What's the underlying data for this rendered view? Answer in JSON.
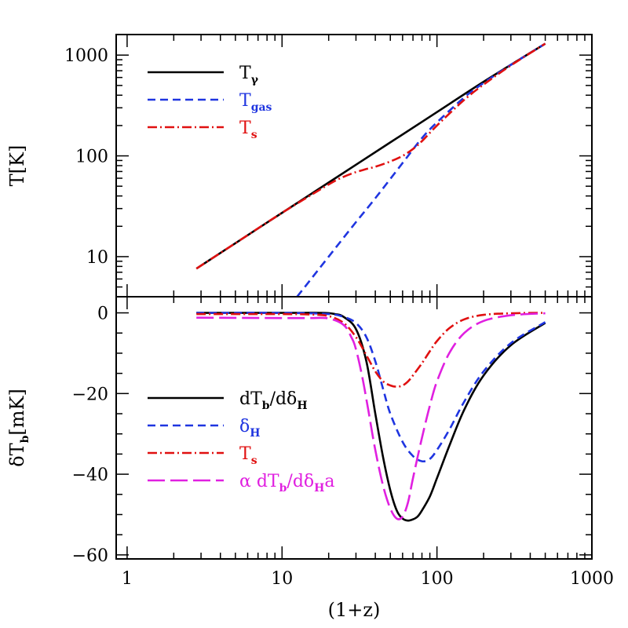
{
  "chart_data": [
    {
      "panel": "top",
      "type": "line",
      "xscale": "log",
      "yscale": "log",
      "xlim": [
        0.85,
        1000
      ],
      "ylim": [
        4,
        1600
      ],
      "ylabel": "T[K]",
      "yticks": [
        {
          "value": 10,
          "label": "10"
        },
        {
          "value": 100,
          "label": "100"
        },
        {
          "value": 1000,
          "label": "1000"
        }
      ],
      "legend": [
        {
          "main": "T",
          "sub": "γ",
          "color": "#000000"
        },
        {
          "main": "T",
          "sub": "gas",
          "color": "#1f35e0"
        },
        {
          "main": "T",
          "sub": "s",
          "color": "#e01010"
        }
      ],
      "series": [
        {
          "key": "t-gamma",
          "color": "#000000",
          "dash": "",
          "x": [
            2.8,
            5,
            10,
            20,
            50,
            100,
            200,
            500
          ],
          "y": [
            7.6,
            13.6,
            27.2,
            54.4,
            136,
            272,
            544,
            1300
          ]
        },
        {
          "key": "t-gas",
          "color": "#1f35e0",
          "dash": "10,6",
          "x": [
            12.5,
            15,
            20,
            30,
            40,
            60,
            80,
            100,
            150,
            200,
            300,
            500
          ],
          "y": [
            4,
            5.7,
            10,
            22,
            38,
            85,
            150,
            215,
            380,
            530,
            800,
            1300
          ]
        },
        {
          "key": "t-s",
          "color": "#e01010",
          "dash": "12,4,2,4",
          "x": [
            2.8,
            5,
            10,
            20,
            25,
            30,
            35,
            40,
            50,
            60,
            70,
            80,
            100,
            150,
            200,
            300,
            500
          ],
          "y": [
            7.6,
            13.6,
            27.2,
            52,
            62,
            69,
            74,
            78,
            88,
            100,
            117,
            140,
            200,
            360,
            510,
            790,
            1300
          ]
        }
      ]
    },
    {
      "panel": "bottom",
      "type": "line",
      "xscale": "log",
      "yscale": "linear",
      "xlim": [
        0.85,
        1000
      ],
      "ylim": [
        -61,
        4
      ],
      "xlabel": "(1+z)",
      "ylabel": "δT_b[mK]",
      "ylabel_parts": {
        "main": "δT",
        "sub": "b",
        "rest": "[mK]"
      },
      "xticks": [
        {
          "value": 1,
          "label": "1"
        },
        {
          "value": 10,
          "label": "10"
        },
        {
          "value": 100,
          "label": "100"
        },
        {
          "value": 1000,
          "label": "1000"
        }
      ],
      "yticks": [
        {
          "value": 0,
          "label": "0"
        },
        {
          "value": -20,
          "label": "−20"
        },
        {
          "value": -40,
          "label": "−40"
        },
        {
          "value": -60,
          "label": "−60"
        }
      ],
      "legend": [
        {
          "parts": [
            {
              "t": "dT"
            },
            {
              "t": "b",
              "sub": true
            },
            {
              "t": "/dδ"
            },
            {
              "t": "H",
              "sub": true
            }
          ],
          "color": "#000000"
        },
        {
          "parts": [
            {
              "t": "δ"
            },
            {
              "t": "H",
              "sub": true
            }
          ],
          "color": "#1f35e0"
        },
        {
          "parts": [
            {
              "t": "T"
            },
            {
              "t": "s",
              "sub": true
            }
          ],
          "color": "#e01010"
        },
        {
          "parts": [
            {
              "t": "α dT"
            },
            {
              "t": "b",
              "sub": true
            },
            {
              "t": "/dδ"
            },
            {
              "t": "H",
              "sub": true
            },
            {
              "t": "a"
            }
          ],
          "color": "#e020e0"
        }
      ],
      "series": [
        {
          "key": "dtb-ddh",
          "color": "#000000",
          "dash": "",
          "x": [
            2.8,
            10,
            18,
            22,
            25,
            30,
            35,
            40,
            45,
            50,
            55,
            60,
            65,
            70,
            75,
            80,
            90,
            100,
            120,
            150,
            200,
            300,
            500
          ],
          "y": [
            0,
            0,
            0,
            -0.3,
            -1,
            -4,
            -12,
            -25,
            -36,
            -44,
            -49,
            -51,
            -51.5,
            -51.2,
            -50.5,
            -49,
            -45.5,
            -41,
            -33,
            -24,
            -15.5,
            -8,
            -2.5
          ]
        },
        {
          "key": "delta-h",
          "color": "#1f35e0",
          "dash": "10,6",
          "x": [
            2.8,
            10,
            20,
            25,
            30,
            35,
            40,
            45,
            50,
            60,
            70,
            80,
            90,
            100,
            120,
            150,
            200,
            300,
            500
          ],
          "y": [
            0,
            0,
            -0.3,
            -1,
            -2.5,
            -6,
            -12,
            -19,
            -25,
            -32,
            -35.5,
            -36.8,
            -36.2,
            -34,
            -29,
            -22,
            -14.5,
            -7.5,
            -2.3
          ]
        },
        {
          "key": "t-s-b",
          "color": "#e01010",
          "dash": "12,4,2,4",
          "x": [
            2.8,
            10,
            15,
            20,
            25,
            30,
            35,
            40,
            45,
            50,
            55,
            60,
            65,
            70,
            80,
            90,
            100,
            120,
            150,
            200,
            300,
            500
          ],
          "y": [
            -0.3,
            -0.3,
            -0.4,
            -0.8,
            -2.5,
            -6,
            -10.5,
            -14.5,
            -17,
            -18,
            -18.3,
            -18,
            -17,
            -15.5,
            -12.5,
            -9.5,
            -7,
            -3.8,
            -1.6,
            -0.5,
            -0.1,
            0
          ]
        },
        {
          "key": "alpha-dtb",
          "color": "#e020e0",
          "dash": "22,7",
          "x": [
            2.8,
            10,
            15,
            20,
            25,
            28,
            30,
            33,
            36,
            40,
            45,
            50,
            55,
            60,
            65,
            70,
            80,
            90,
            100,
            120,
            150,
            200,
            300,
            500
          ],
          "y": [
            -1.2,
            -1.3,
            -1.3,
            -1.4,
            -3,
            -6,
            -9,
            -16,
            -24,
            -34,
            -43,
            -48.5,
            -51,
            -50.5,
            -47,
            -41,
            -31,
            -23,
            -17,
            -10,
            -5,
            -2,
            -0.6,
            -0.1
          ]
        }
      ]
    }
  ]
}
